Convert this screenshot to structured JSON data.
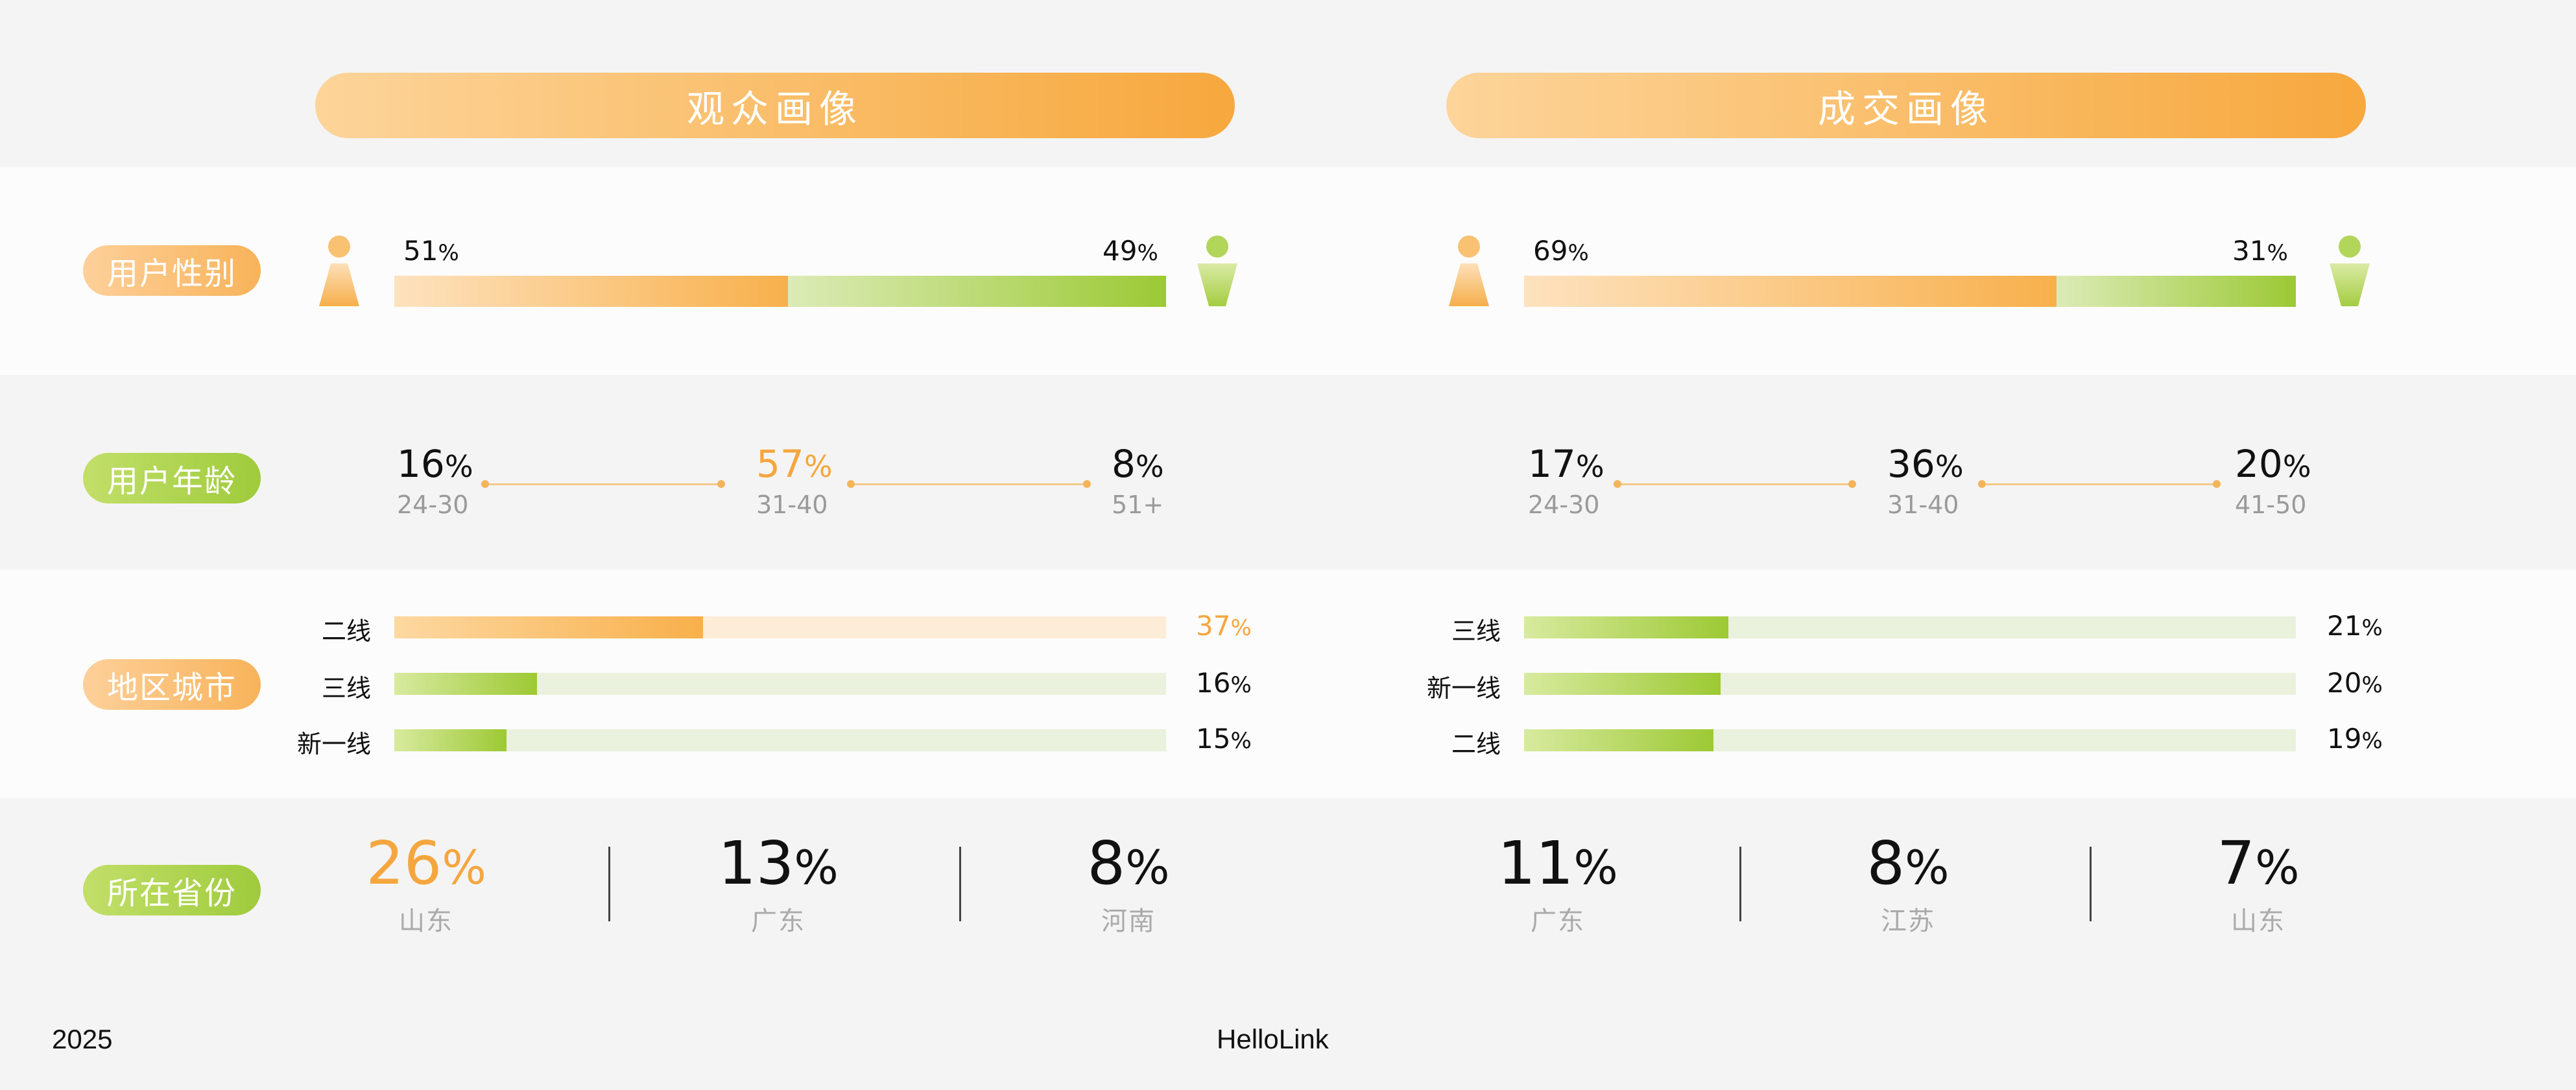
{
  "panels": [
    {
      "title": "观众画像",
      "gender": {
        "female_pct": 51,
        "male_pct": 49
      },
      "age": [
        {
          "value": 16,
          "range": "24-30",
          "highlight": false
        },
        {
          "value": 57,
          "range": "31-40",
          "highlight": true
        },
        {
          "value": 8,
          "range": "51+",
          "highlight": false
        }
      ],
      "region": {
        "color": "orange-first",
        "items": [
          {
            "name": "二线",
            "value": 37,
            "fill_pct": 40,
            "highlight": true
          },
          {
            "name": "三线",
            "value": 16,
            "fill_pct": 18.5,
            "highlight": false
          },
          {
            "name": "新一线",
            "value": 15,
            "fill_pct": 14.5,
            "highlight": false
          }
        ]
      },
      "province": [
        {
          "value": 26,
          "name": "山东",
          "highlight": true
        },
        {
          "value": 13,
          "name": "广东",
          "highlight": false
        },
        {
          "value": 8,
          "name": "河南",
          "highlight": false
        }
      ]
    },
    {
      "title": "成交画像",
      "gender": {
        "female_pct": 69,
        "male_pct": 31
      },
      "age": [
        {
          "value": 17,
          "range": "24-30",
          "highlight": false
        },
        {
          "value": 36,
          "range": "31-40",
          "highlight": false
        },
        {
          "value": 20,
          "range": "41-50",
          "highlight": false
        }
      ],
      "region": {
        "color": "green",
        "items": [
          {
            "name": "三线",
            "value": 21,
            "fill_pct": 26.5,
            "highlight": false
          },
          {
            "name": "新一线",
            "value": 20,
            "fill_pct": 25.5,
            "highlight": false
          },
          {
            "name": "二线",
            "value": 19,
            "fill_pct": 24.5,
            "highlight": false
          }
        ]
      },
      "province": [
        {
          "value": 11,
          "name": "广东",
          "highlight": false
        },
        {
          "value": 8,
          "name": "江苏",
          "highlight": false
        },
        {
          "value": 7,
          "name": "山东",
          "highlight": false
        }
      ]
    }
  ],
  "row_labels": {
    "gender": "用户性别",
    "age": "用户年龄",
    "region": "地区城市",
    "province": "所在省份"
  },
  "percent_sign": "%",
  "footer": {
    "year": "2025",
    "brand": "HelloLink"
  },
  "colors": {
    "accent_orange": "#f5a63f",
    "accent_green": "#9dc934"
  },
  "icons": {
    "female": "female-person-icon",
    "male": "male-person-icon"
  },
  "chart_data": [
    {
      "type": "bar",
      "title": "观众画像",
      "gender": {
        "categories": [
          "female",
          "male"
        ],
        "values": [
          51,
          49
        ]
      },
      "age": {
        "categories": [
          "24-30",
          "31-40",
          "51+"
        ],
        "values": [
          16,
          57,
          8
        ]
      },
      "region": {
        "categories": [
          "二线",
          "三线",
          "新一线"
        ],
        "values": [
          37,
          16,
          15
        ]
      },
      "province": {
        "categories": [
          "山东",
          "广东",
          "河南"
        ],
        "values": [
          26,
          13,
          8
        ]
      }
    },
    {
      "type": "bar",
      "title": "成交画像",
      "gender": {
        "categories": [
          "female",
          "male"
        ],
        "values": [
          69,
          31
        ]
      },
      "age": {
        "categories": [
          "24-30",
          "31-40",
          "41-50"
        ],
        "values": [
          17,
          36,
          20
        ]
      },
      "region": {
        "categories": [
          "三线",
          "新一线",
          "二线"
        ],
        "values": [
          21,
          20,
          19
        ]
      },
      "province": {
        "categories": [
          "广东",
          "江苏",
          "山东"
        ],
        "values": [
          11,
          8,
          7
        ]
      }
    }
  ]
}
